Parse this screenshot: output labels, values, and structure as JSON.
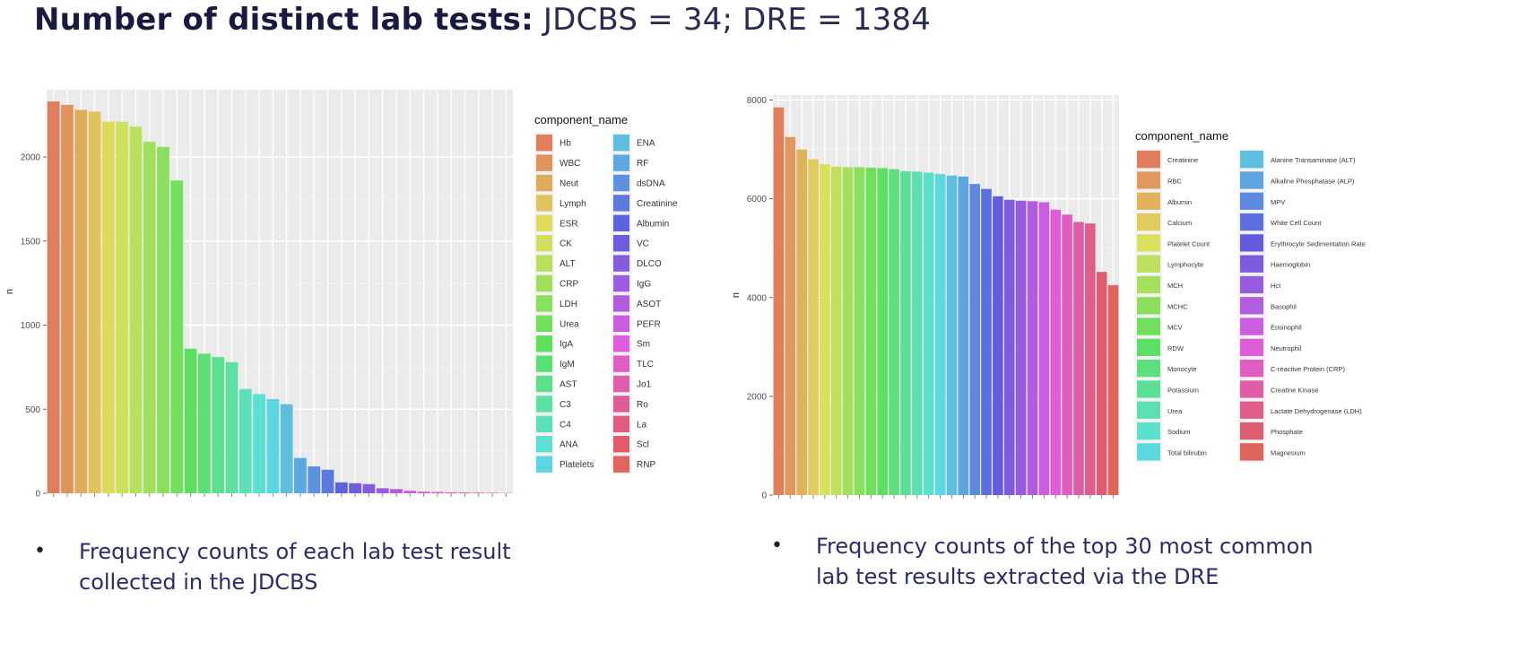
{
  "header": {
    "title_bold": "Number of distinct lab tests:",
    "title_rest": " JDCBS = 34; DRE = 1384"
  },
  "bullets": {
    "left": "Frequency counts of each lab test result collected in the JDCBS",
    "right": "Frequency counts of the top 30 most common lab test results extracted via the DRE"
  },
  "chart_data": [
    {
      "type": "bar",
      "ylabel": "n",
      "xlabel": "",
      "ylim": [
        0,
        2400
      ],
      "yticks": [
        0,
        500,
        1000,
        1500,
        2000
      ],
      "grid": true,
      "legend_position": "right",
      "legend_title": "component_name",
      "categories": [
        "Hb",
        "WBC",
        "Neut",
        "Lymph",
        "ESR",
        "CK",
        "ALT",
        "CRP",
        "LDH",
        "Urea",
        "IgA",
        "IgM",
        "AST",
        "C3",
        "C4",
        "ANA",
        "Platelets",
        "ENA",
        "RF",
        "dsDNA",
        "Creatinine",
        "Albumin",
        "VC",
        "DLCO",
        "IgG",
        "ASOT",
        "PEFR",
        "Sm",
        "TLC",
        "Jo1",
        "Ro",
        "La",
        "Scl",
        "RNP"
      ],
      "values": [
        2330,
        2310,
        2280,
        2270,
        2210,
        2210,
        2180,
        2090,
        2060,
        1860,
        860,
        830,
        810,
        780,
        620,
        590,
        560,
        530,
        210,
        160,
        140,
        65,
        60,
        55,
        30,
        25,
        15,
        10,
        8,
        6,
        5,
        4,
        3,
        2
      ]
    },
    {
      "type": "bar",
      "ylabel": "n",
      "xlabel": "",
      "ylim": [
        0,
        8100
      ],
      "yticks": [
        0,
        2000,
        4000,
        6000,
        8000
      ],
      "grid": true,
      "legend_position": "right",
      "legend_title": "component_name",
      "categories": [
        "Creatinine",
        "RBC",
        "Albumin",
        "Calcium",
        "Platelet Count",
        "Lymphocyte",
        "MCH",
        "MCHC",
        "MCV",
        "RDW",
        "Monocyte",
        "Potassium",
        "Urea",
        "Sodium",
        "Total bilirubin",
        "Alanine Transaminase (ALT)",
        "Alkaline Phosphatase (ALP)",
        "MPV",
        "White Cell Count",
        "Erythrocyte Sedimentation Rate",
        "Haemoglobin",
        "Hct",
        "Basophil",
        "Eosinophil",
        "Neutrophil",
        "C-reactive Protein (CRP)",
        "Creatine Kinase",
        "Lactate Dehydrogenase (LDH)",
        "Phosphate",
        "Magnesium"
      ],
      "values": [
        7850,
        7250,
        7000,
        6800,
        6700,
        6650,
        6640,
        6640,
        6630,
        6620,
        6600,
        6560,
        6550,
        6530,
        6500,
        6470,
        6450,
        6300,
        6200,
        6050,
        5980,
        5960,
        5950,
        5930,
        5780,
        5680,
        5530,
        5500,
        4520,
        4250
      ]
    }
  ]
}
